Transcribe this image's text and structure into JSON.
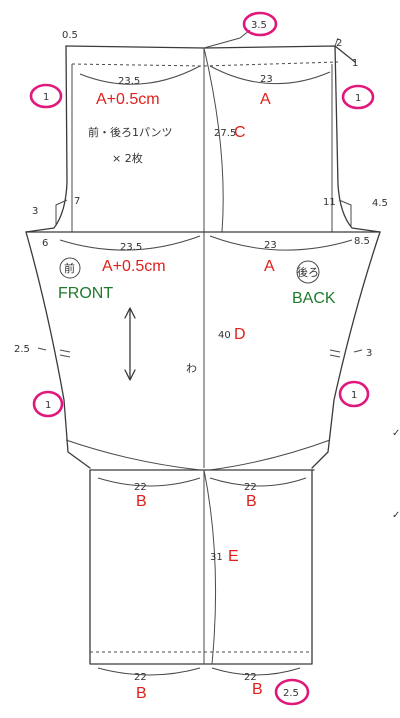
{
  "colors": {
    "marker_red": "#e0201c",
    "marker_green": "#1e7a2c",
    "highlight_magenta": "#e0187c",
    "pencil": "#3a3a3a"
  },
  "top": {
    "left_width": "23.5",
    "left_seam": "A+0.5cm",
    "right_width": "23",
    "right_seam": "A",
    "top_corner": "0.5",
    "rise_at_center": "3.5",
    "right_rise": "2",
    "right_drop": "1",
    "allowance_left": "1",
    "allowance_right": "1"
  },
  "center": {
    "rise_length": "27.5",
    "rise_letter": "C",
    "jp_title": "前・後ろ1パンツ",
    "jp_count": "× 2枚"
  },
  "crotch": {
    "left_ext": "3",
    "left_seam": "7",
    "left_depth": "6",
    "right_seam": "11",
    "right_ext": "4.5",
    "right_depth": "8.5"
  },
  "hip": {
    "left_width": "23.5",
    "left_seam": "A+0.5cm",
    "right_width": "23",
    "right_seam": "A"
  },
  "labels": {
    "front_jp": "前",
    "front_en": "FRONT",
    "back_jp": "後ろ",
    "back_en": "BACK",
    "grain": "わ",
    "left_side": "2.5",
    "right_side": "3",
    "side_allowance_left": "1",
    "side_allowance_right": "1"
  },
  "leg": {
    "length": "40",
    "letter": "D"
  },
  "knee": {
    "left_width": "22",
    "left_letter": "B",
    "right_width": "22",
    "right_letter": "B"
  },
  "lower": {
    "length": "31",
    "letter": "E"
  },
  "hem": {
    "left_width": "22",
    "left_letter": "B",
    "right_width": "22",
    "right_letter": "B",
    "allowance": "2.5"
  }
}
